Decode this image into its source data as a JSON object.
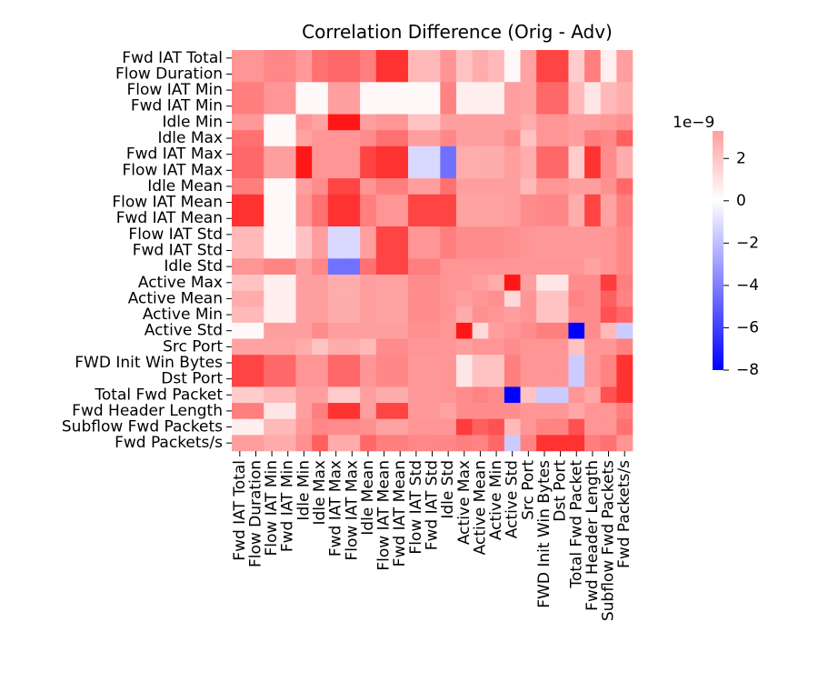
{
  "chart_data": {
    "type": "heatmap",
    "title": "Correlation Difference (Orig - Adv)",
    "rows": [
      "Fwd IAT Total",
      "Flow Duration",
      "Flow IAT Min",
      "Fwd IAT Min",
      "Idle Min",
      "Idle Max",
      "Fwd IAT Max",
      "Flow IAT Max",
      "Idle Mean",
      "Flow IAT Mean",
      "Fwd IAT Mean",
      "Flow IAT Std",
      "Fwd IAT Std",
      "Idle Std",
      "Active Max",
      "Active Mean",
      "Active Min",
      "Active Std",
      "Src Port",
      "FWD Init Win Bytes",
      "Dst Port",
      "Total Fwd Packet",
      "Fwd Header Length",
      "Subflow Fwd Packets",
      "Fwd Packets/s"
    ],
    "columns": [
      "Fwd IAT Total",
      "Flow Duration",
      "Flow IAT Min",
      "Fwd IAT Min",
      "Idle Min",
      "Idle Max",
      "Fwd IAT Max",
      "Flow IAT Max",
      "Idle Mean",
      "Flow IAT Mean",
      "Fwd IAT Mean",
      "Flow IAT Std",
      "Fwd IAT Std",
      "Idle Std",
      "Active Max",
      "Active Mean",
      "Active Min",
      "Active Std",
      "Src Port",
      "FWD Init Win Bytes",
      "Dst Port",
      "Total Fwd Packet",
      "Fwd Header Length",
      "Subflow Fwd Packets",
      "Fwd Packets/s"
    ],
    "values_unit": "1e-9",
    "values": [
      [
        0,
        0,
        0.3,
        0.3,
        -0.1,
        0.8,
        1.0,
        1.0,
        0.5,
        2.2,
        2.2,
        -0.8,
        -0.8,
        0,
        -1.0,
        -0.5,
        -0.8,
        -2.2,
        -0.3,
        1.8,
        1.8,
        -1.2,
        0.5,
        -2.0,
        -0.2
      ],
      [
        0,
        0,
        0.3,
        0.3,
        -0.1,
        0.8,
        1.0,
        1.0,
        0.5,
        2.2,
        2.2,
        -0.8,
        -0.8,
        0,
        -1.0,
        -0.5,
        -0.8,
        -2.2,
        -0.3,
        1.8,
        1.8,
        -1.2,
        0.5,
        -2.0,
        -0.2
      ],
      [
        0.5,
        0.5,
        0,
        0,
        -2.2,
        -2.2,
        -0.2,
        -0.2,
        -2.2,
        -2.2,
        -2.2,
        -2.2,
        -2.2,
        0.4,
        -2.0,
        -2.0,
        -2.0,
        -0.2,
        -0.3,
        1.0,
        1.0,
        -0.8,
        -1.8,
        -0.8,
        -0.5
      ],
      [
        0.5,
        0.5,
        0,
        0,
        -2.2,
        -2.2,
        -0.2,
        -0.2,
        -2.2,
        -2.2,
        -2.2,
        -2.2,
        -2.2,
        0.4,
        -2.0,
        -2.0,
        -2.0,
        -0.2,
        -0.3,
        1.0,
        1.0,
        -0.8,
        -1.8,
        -0.8,
        -0.5
      ],
      [
        -0.1,
        -0.1,
        -2.2,
        -2.2,
        0,
        -0.3,
        2.8,
        2.8,
        -0.2,
        0,
        0,
        -1.0,
        -1.0,
        -0.2,
        -0.2,
        -0.2,
        -0.2,
        -0.2,
        -0.5,
        0,
        0,
        -0.2,
        -0.2,
        -0.1,
        0.1
      ],
      [
        0.8,
        0.8,
        -2.2,
        -2.2,
        -0.3,
        0,
        0,
        0,
        0.2,
        0.8,
        0.8,
        -0.2,
        -0.2,
        0.3,
        -0.2,
        -0.2,
        -0.2,
        0.2,
        -1.0,
        0,
        0,
        -0.2,
        0.5,
        0.3,
        1.2
      ],
      [
        1.0,
        1.0,
        -0.2,
        -0.2,
        2.8,
        0,
        0,
        0,
        1.8,
        2.2,
        2.2,
        -3.2,
        -3.2,
        -5.5,
        -0.5,
        -0.5,
        -0.5,
        -0.2,
        -0.5,
        1.0,
        1.0,
        -1.2,
        2.2,
        0.2,
        -0.5
      ],
      [
        1.0,
        1.0,
        -0.2,
        -0.2,
        2.8,
        0,
        0,
        0,
        1.8,
        2.2,
        2.2,
        -3.2,
        -3.2,
        -5.5,
        -0.5,
        -0.5,
        -0.5,
        -0.2,
        -0.5,
        1.0,
        1.0,
        -1.2,
        2.2,
        0.2,
        -0.5
      ],
      [
        0.5,
        0.5,
        -2.2,
        -2.2,
        -0.2,
        0.2,
        1.8,
        1.8,
        0,
        0.5,
        0.5,
        -0.2,
        -0.2,
        0.8,
        -0.2,
        -0.2,
        -0.2,
        -0.2,
        -0.8,
        0,
        0,
        -0.2,
        -0.2,
        0.1,
        1.0
      ],
      [
        2.2,
        2.2,
        -2.2,
        -2.2,
        0,
        0.8,
        2.2,
        2.2,
        0.5,
        0,
        0,
        1.8,
        1.8,
        1.8,
        -0.3,
        -0.3,
        -0.3,
        -0.2,
        0.2,
        0.3,
        0.3,
        -0.5,
        1.8,
        -0.3,
        0.5
      ],
      [
        2.2,
        2.2,
        -2.2,
        -2.2,
        0,
        0.8,
        2.2,
        2.2,
        0.5,
        0,
        0,
        1.8,
        1.8,
        1.8,
        -0.3,
        -0.3,
        -0.3,
        -0.2,
        0.2,
        0.3,
        0.3,
        -0.5,
        1.8,
        -0.3,
        0.5
      ],
      [
        -0.8,
        -0.8,
        -2.2,
        -2.2,
        -1.0,
        -0.2,
        -3.2,
        -3.2,
        -0.2,
        1.8,
        1.8,
        0,
        0,
        0.5,
        0.2,
        0.2,
        0.2,
        0.1,
        0,
        -0.1,
        -0.1,
        -0.1,
        -0.1,
        0,
        0.3
      ],
      [
        -0.8,
        -0.8,
        -2.2,
        -2.2,
        -1.0,
        -0.2,
        -3.2,
        -3.2,
        -0.2,
        1.8,
        1.8,
        0,
        0,
        0.5,
        0.2,
        0.2,
        0.2,
        0.1,
        0,
        -0.1,
        -0.1,
        -0.1,
        -0.1,
        0,
        0.3
      ],
      [
        0,
        0,
        0.4,
        0.4,
        -0.2,
        0.3,
        -5.5,
        -5.5,
        0.8,
        1.8,
        1.8,
        0.5,
        0.5,
        0,
        0,
        0,
        0,
        0,
        0,
        0,
        0,
        0,
        -0.3,
        0,
        0.3
      ],
      [
        -1.0,
        -1.0,
        -2.0,
        -2.0,
        -0.2,
        -0.2,
        -0.5,
        -0.5,
        -0.2,
        -0.3,
        -0.3,
        0.2,
        0.2,
        0,
        0,
        -0.2,
        -0.5,
        2.8,
        -0.2,
        -1.8,
        -1.8,
        0.2,
        0.2,
        2.0,
        0.5
      ],
      [
        -0.5,
        -0.5,
        -2.0,
        -2.0,
        -0.2,
        -0.2,
        -0.5,
        -0.5,
        -0.2,
        -0.3,
        -0.3,
        0.2,
        0.2,
        0,
        -0.2,
        0,
        0.1,
        -1.5,
        0,
        -1.0,
        -1.0,
        0.4,
        0.2,
        1.2,
        0.4
      ],
      [
        -0.8,
        -0.8,
        -2.0,
        -2.0,
        -0.2,
        -0.2,
        -0.5,
        -0.5,
        -0.2,
        -0.3,
        -0.3,
        0.2,
        0.2,
        0,
        -0.5,
        0.1,
        0,
        -0.2,
        0,
        -1.0,
        -1.0,
        0.2,
        0.2,
        1.5,
        1.0
      ],
      [
        -2.2,
        -2.2,
        -0.2,
        -0.2,
        -0.2,
        0.2,
        -0.2,
        -0.2,
        -0.2,
        -0.2,
        -0.2,
        0.1,
        0.1,
        0,
        2.8,
        -1.5,
        -0.2,
        0,
        0.2,
        0.5,
        0.5,
        -8.0,
        0.2,
        -0.8,
        -3.5
      ],
      [
        -0.3,
        -0.3,
        -0.3,
        -0.3,
        -0.5,
        -1.0,
        -0.5,
        -0.5,
        -0.8,
        0.2,
        0.2,
        0,
        0,
        0,
        -0.2,
        0,
        0,
        0.2,
        0,
        0,
        0,
        -1.0,
        0,
        0,
        0.4
      ],
      [
        1.8,
        1.8,
        1.0,
        1.0,
        0,
        0,
        1.0,
        1.0,
        0,
        0.3,
        0.3,
        -0.1,
        -0.1,
        0,
        -1.8,
        -1.0,
        -1.0,
        0.5,
        0,
        0,
        0,
        -3.5,
        0,
        0.4,
        2.2
      ],
      [
        1.8,
        1.8,
        1.0,
        1.0,
        0,
        0,
        1.0,
        1.0,
        0,
        0.3,
        0.3,
        -0.1,
        -0.1,
        0,
        -1.8,
        -1.0,
        -1.0,
        0.5,
        0,
        0,
        0,
        -3.5,
        0,
        0.4,
        2.2
      ],
      [
        -1.2,
        -1.2,
        -0.8,
        -0.8,
        -0.2,
        -0.2,
        -1.2,
        -1.2,
        -0.2,
        -0.5,
        -0.5,
        -0.1,
        -0.1,
        0,
        0.2,
        0.4,
        0.2,
        -8.0,
        -1.0,
        -3.5,
        -3.5,
        0,
        -0.4,
        1.5,
        2.2
      ],
      [
        0.5,
        0.5,
        -1.8,
        -1.8,
        -0.2,
        0.5,
        2.2,
        2.2,
        -0.2,
        1.8,
        1.8,
        -0.1,
        -0.1,
        -0.3,
        0.2,
        0.2,
        0.2,
        0.2,
        0,
        0,
        0,
        -0.4,
        0,
        0,
        0.5
      ],
      [
        -2.0,
        -2.0,
        -0.8,
        -0.8,
        -0.1,
        0.3,
        0.2,
        0.2,
        0.1,
        -0.3,
        -0.3,
        0,
        0,
        0,
        2.0,
        1.2,
        1.5,
        -0.8,
        0,
        0.4,
        0.4,
        1.5,
        0,
        0,
        0.8
      ],
      [
        -0.2,
        -0.2,
        -0.5,
        -0.5,
        0.1,
        1.2,
        -0.5,
        -0.5,
        1.0,
        0.5,
        0.5,
        0.3,
        0.3,
        0.3,
        0.5,
        0.4,
        1.0,
        -3.5,
        0.4,
        2.2,
        2.2,
        2.2,
        0.5,
        0.8,
        0
      ]
    ],
    "colormap": "bwr",
    "colorbar": {
      "vmin": -8,
      "vmax": 3.3,
      "ticks": [
        2,
        0,
        -2,
        -4,
        -6,
        -8
      ],
      "tick_labels": [
        "2",
        "0",
        "−2",
        "−4",
        "−6",
        "−8"
      ],
      "exponent_label": "1e−9"
    }
  }
}
